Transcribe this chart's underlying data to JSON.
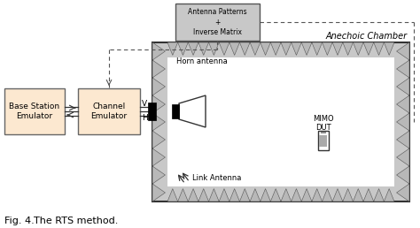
{
  "title_fig": "Fig. 4.",
  "title_text": "The RTS method.",
  "bg_color": "#ffffff",
  "box_color_emulator": "#fce8d0",
  "box_edge_color": "#666666",
  "chamber_wall_fill": "#c8c8c8",
  "chamber_edge": "#333333",
  "ap_box_fill": "#c8c8c8",
  "ap_box_edge": "#555555",
  "dashed_color": "#555555",
  "anechoic_label": "Anechoic Chamber",
  "box1_label": "Base Station\nEmulator",
  "box2_label": "Channel\nEmulator",
  "ap_label": "Antenna Patterns\n+\nInverse Matrix",
  "horn_label": "Horn antenna",
  "mimo_label": "MIMO\nDUT",
  "link_label": "Link Antenna",
  "V_label": "V",
  "H_label": "H",
  "absorber_fill": "#b8b8b8",
  "absorber_edge": "#555555"
}
